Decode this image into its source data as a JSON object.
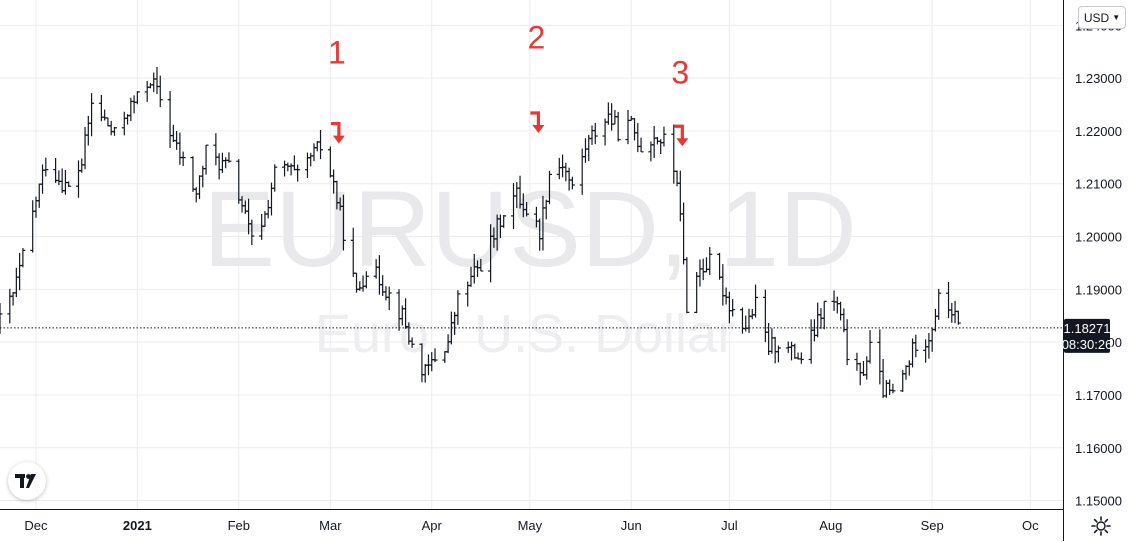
{
  "chart_data": {
    "type": "ohlc",
    "symbol_watermark": "EURUSD, 1D",
    "subtitle_watermark": "Euro / U.S. Dollar",
    "ylim": [
      1.1484,
      1.2448
    ],
    "y_ticks": [
      "1.15000",
      "1.16000",
      "1.17000",
      "1.18000",
      "1.19000",
      "1.20000",
      "1.21000",
      "1.22000",
      "1.23000",
      "1.24000"
    ],
    "x_ticks": [
      {
        "label": "Dec",
        "date": "2020-12-01",
        "bold": false
      },
      {
        "label": "2021",
        "date": "2021-01-01",
        "bold": true
      },
      {
        "label": "Feb",
        "date": "2021-02-01",
        "bold": false
      },
      {
        "label": "Mar",
        "date": "2021-03-01",
        "bold": false
      },
      {
        "label": "Apr",
        "date": "2021-04-01",
        "bold": false
      },
      {
        "label": "May",
        "date": "2021-05-01",
        "bold": false
      },
      {
        "label": "Jun",
        "date": "2021-06-01",
        "bold": false
      },
      {
        "label": "Jul",
        "date": "2021-07-01",
        "bold": false
      },
      {
        "label": "Aug",
        "date": "2021-08-01",
        "bold": false
      },
      {
        "label": "Sep",
        "date": "2021-09-01",
        "bold": false
      },
      {
        "label": "Oc",
        "date": "2021-10-01",
        "bold": false
      }
    ],
    "x_start": "2020-11-20",
    "x_end": "2021-10-11",
    "current_price": "1.18271",
    "current_price_value": 1.18271,
    "countdown": "08:30:26",
    "closes": [
      {
        "date": "2020-11-20",
        "c": 1.184
      },
      {
        "date": "2020-11-24",
        "c": 1.189
      },
      {
        "date": "2020-11-27",
        "c": 1.196
      },
      {
        "date": "2020-12-01",
        "c": 1.207
      },
      {
        "date": "2020-12-04",
        "c": 1.214
      },
      {
        "date": "2020-12-08",
        "c": 1.211
      },
      {
        "date": "2020-12-11",
        "c": 1.209
      },
      {
        "date": "2020-12-15",
        "c": 1.214
      },
      {
        "date": "2020-12-18",
        "c": 1.225
      },
      {
        "date": "2020-12-22",
        "c": 1.222
      },
      {
        "date": "2020-12-25",
        "c": 1.219
      },
      {
        "date": "2020-12-29",
        "c": 1.224
      },
      {
        "date": "2021-01-01",
        "c": 1.226
      },
      {
        "date": "2021-01-05",
        "c": 1.23
      },
      {
        "date": "2021-01-08",
        "c": 1.226
      },
      {
        "date": "2021-01-12",
        "c": 1.218
      },
      {
        "date": "2021-01-15",
        "c": 1.214
      },
      {
        "date": "2021-01-19",
        "c": 1.208
      },
      {
        "date": "2021-01-22",
        "c": 1.216
      },
      {
        "date": "2021-01-26",
        "c": 1.214
      },
      {
        "date": "2021-01-29",
        "c": 1.213
      },
      {
        "date": "2021-02-02",
        "c": 1.206
      },
      {
        "date": "2021-02-05",
        "c": 1.199
      },
      {
        "date": "2021-02-09",
        "c": 1.204
      },
      {
        "date": "2021-02-12",
        "c": 1.212
      },
      {
        "date": "2021-02-16",
        "c": 1.213
      },
      {
        "date": "2021-02-19",
        "c": 1.211
      },
      {
        "date": "2021-02-23",
        "c": 1.215
      },
      {
        "date": "2021-02-26",
        "c": 1.217
      },
      {
        "date": "2021-03-02",
        "c": 1.21
      },
      {
        "date": "2021-03-05",
        "c": 1.201
      },
      {
        "date": "2021-03-09",
        "c": 1.189
      },
      {
        "date": "2021-03-12",
        "c": 1.194
      },
      {
        "date": "2021-03-16",
        "c": 1.192
      },
      {
        "date": "2021-03-19",
        "c": 1.189
      },
      {
        "date": "2021-03-23",
        "c": 1.185
      },
      {
        "date": "2021-03-26",
        "c": 1.179
      },
      {
        "date": "2021-03-30",
        "c": 1.174
      },
      {
        "date": "2021-04-02",
        "c": 1.177
      },
      {
        "date": "2021-04-06",
        "c": 1.18
      },
      {
        "date": "2021-04-09",
        "c": 1.188
      },
      {
        "date": "2021-04-13",
        "c": 1.192
      },
      {
        "date": "2021-04-16",
        "c": 1.195
      },
      {
        "date": "2021-04-20",
        "c": 1.2
      },
      {
        "date": "2021-04-23",
        "c": 1.205
      },
      {
        "date": "2021-04-27",
        "c": 1.208
      },
      {
        "date": "2021-04-30",
        "c": 1.205
      },
      {
        "date": "2021-05-04",
        "c": 1.201
      },
      {
        "date": "2021-05-07",
        "c": 1.212
      },
      {
        "date": "2021-05-11",
        "c": 1.214
      },
      {
        "date": "2021-05-14",
        "c": 1.209
      },
      {
        "date": "2021-05-18",
        "c": 1.217
      },
      {
        "date": "2021-05-21",
        "c": 1.22
      },
      {
        "date": "2021-05-25",
        "c": 1.223
      },
      {
        "date": "2021-05-28",
        "c": 1.22
      },
      {
        "date": "2021-06-01",
        "c": 1.221
      },
      {
        "date": "2021-06-04",
        "c": 1.217
      },
      {
        "date": "2021-06-08",
        "c": 1.219
      },
      {
        "date": "2021-06-11",
        "c": 1.218
      },
      {
        "date": "2021-06-15",
        "c": 1.211
      },
      {
        "date": "2021-06-18",
        "c": 1.187
      },
      {
        "date": "2021-06-22",
        "c": 1.194
      },
      {
        "date": "2021-06-25",
        "c": 1.195
      },
      {
        "date": "2021-06-29",
        "c": 1.19
      },
      {
        "date": "2021-07-02",
        "c": 1.186
      },
      {
        "date": "2021-07-06",
        "c": 1.183
      },
      {
        "date": "2021-07-09",
        "c": 1.187
      },
      {
        "date": "2021-07-13",
        "c": 1.179
      },
      {
        "date": "2021-07-16",
        "c": 1.18
      },
      {
        "date": "2021-07-20",
        "c": 1.178
      },
      {
        "date": "2021-07-23",
        "c": 1.177
      },
      {
        "date": "2021-07-27",
        "c": 1.182
      },
      {
        "date": "2021-07-30",
        "c": 1.187
      },
      {
        "date": "2021-08-03",
        "c": 1.187
      },
      {
        "date": "2021-08-06",
        "c": 1.178
      },
      {
        "date": "2021-08-10",
        "c": 1.173
      },
      {
        "date": "2021-08-13",
        "c": 1.179
      },
      {
        "date": "2021-08-17",
        "c": 1.171
      },
      {
        "date": "2021-08-20",
        "c": 1.17
      },
      {
        "date": "2021-08-24",
        "c": 1.175
      },
      {
        "date": "2021-08-27",
        "c": 1.18
      },
      {
        "date": "2021-08-31",
        "c": 1.181
      },
      {
        "date": "2021-09-03",
        "c": 1.188
      },
      {
        "date": "2021-09-07",
        "c": 1.186
      },
      {
        "date": "2021-09-09",
        "c": 1.1827
      }
    ],
    "annotations": [
      {
        "label": "1",
        "date": "2021-03-03",
        "price": 1.2328,
        "arrow_price": 1.2195
      },
      {
        "label": "2",
        "date": "2021-05-03",
        "price": 1.2356,
        "arrow_price": 1.2215
      },
      {
        "label": "3",
        "date": "2021-06-16",
        "price": 1.229,
        "arrow_price": 1.219
      }
    ],
    "colors": {
      "bars": "#131722",
      "grid": "#ececec",
      "annotation": "#e53935",
      "price_label_bg": "#131722",
      "watermark": "#e9e9ec"
    },
    "grid": true
  },
  "ui": {
    "currency": "USD",
    "tv_logo_text": "TV"
  }
}
